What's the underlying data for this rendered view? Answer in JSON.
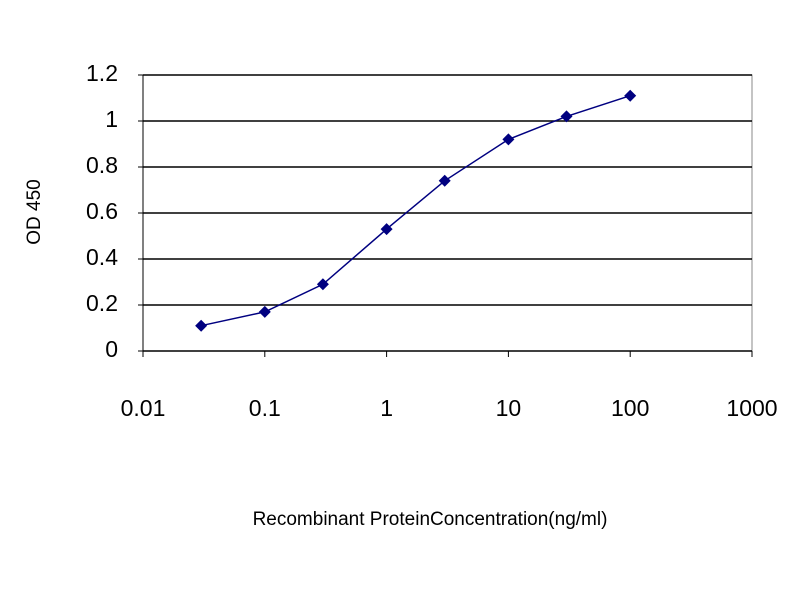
{
  "chart_data": {
    "type": "line",
    "x_label": "Recombinant ProteinConcentration(ng/ml)",
    "y_label": "OD 450",
    "x": [
      0.03,
      0.1,
      0.3,
      1,
      3,
      10,
      30,
      100
    ],
    "series": [
      {
        "color": "#000080",
        "values": [
          0.11,
          0.17,
          0.29,
          0.53,
          0.74,
          0.92,
          1.02,
          1.11
        ]
      }
    ],
    "xscale": "log",
    "xlim": [
      0.01,
      1000
    ],
    "xticks": [
      0.01,
      0.1,
      1,
      10,
      100,
      1000
    ],
    "ylim": [
      0,
      1.2
    ],
    "yticks": [
      0,
      0.2,
      0.4,
      0.6,
      0.8,
      1,
      1.2
    ],
    "grid": true
  }
}
